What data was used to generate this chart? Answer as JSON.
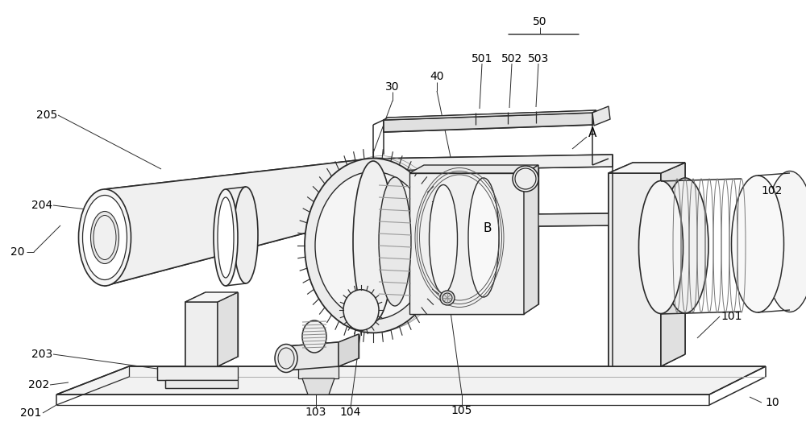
{
  "bg_color": "#ffffff",
  "lc": "#2a2a2a",
  "gc": "#888888",
  "fig_width": 10.0,
  "fig_height": 5.44,
  "dpi": 100
}
